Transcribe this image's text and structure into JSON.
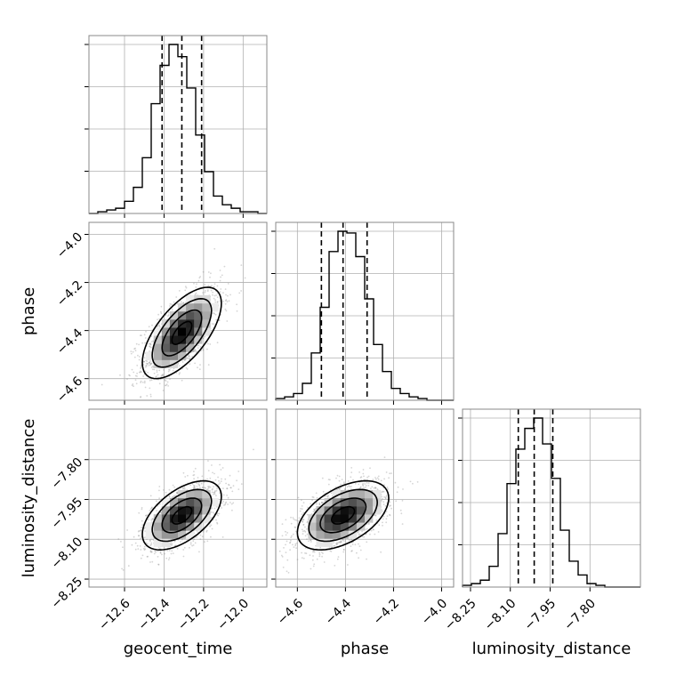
{
  "chart_data": {
    "type": "corner",
    "parameters": [
      "geocent_time",
      "phase",
      "luminosity_distance"
    ],
    "axis_labels": {
      "x": [
        "geocent_time",
        "phase",
        "luminosity_distance"
      ],
      "y_row2": "phase",
      "y_row3": "luminosity_distance"
    },
    "ranges": {
      "geocent_time": [
        -12.78,
        -11.88
      ],
      "phase": [
        -4.69,
        -3.95
      ],
      "luminosity_distance": [
        -8.28,
        -7.61
      ]
    },
    "ticks": {
      "geocent_time": {
        "values": [
          -12.6,
          -12.4,
          -12.2,
          -12.0
        ],
        "labels": [
          "−12.6",
          "−12.4",
          "−12.2",
          "−12.0"
        ]
      },
      "phase": {
        "values": [
          -4.6,
          -4.4,
          -4.2,
          -4.0
        ],
        "labels": [
          "−4.6",
          "−4.4",
          "−4.2",
          "−4.0"
        ]
      },
      "luminosity_distance": {
        "values": [
          -8.25,
          -8.1,
          -7.95,
          -7.8
        ],
        "labels": [
          "−8.25",
          "−8.10",
          "−7.95",
          "−7.80"
        ]
      }
    },
    "quantiles": {
      "geocent_time": [
        -12.41,
        -12.31,
        -12.21
      ],
      "phase": [
        -4.5,
        -4.41,
        -4.31
      ],
      "luminosity_distance": [
        -8.07,
        -8.01,
        -7.94
      ]
    },
    "histograms": {
      "geocent_time": {
        "start": -12.78,
        "step": 0.045,
        "counts": [
          0,
          1,
          2,
          3,
          7,
          15,
          32,
          63,
          85,
          97,
          90,
          72,
          45,
          24,
          10,
          5,
          3,
          1,
          1,
          0
        ]
      },
      "phase": {
        "start": -4.69,
        "step": 0.037,
        "counts": [
          1,
          2,
          4,
          10,
          28,
          55,
          88,
          100,
          99,
          85,
          60,
          33,
          17,
          7,
          4,
          2,
          1,
          0,
          0,
          0
        ]
      },
      "luminosity_distance": {
        "start": -8.28,
        "step": 0.0335,
        "counts": [
          1,
          2,
          4,
          12,
          31,
          60,
          80,
          92,
          98,
          83,
          63,
          33,
          15,
          7,
          2,
          1,
          0,
          0,
          0,
          0
        ]
      }
    },
    "correlations": {
      "phase_vs_geocent_time": 0.65,
      "luminosity_distance_vs_geocent_time": 0.55,
      "luminosity_distance_vs_phase": 0.5
    },
    "grid": true,
    "colors": {
      "hist": "#000000",
      "quantile": "#000000",
      "points": "#888888",
      "contour_line": "#000000",
      "grid": "#b0b0b0"
    }
  }
}
